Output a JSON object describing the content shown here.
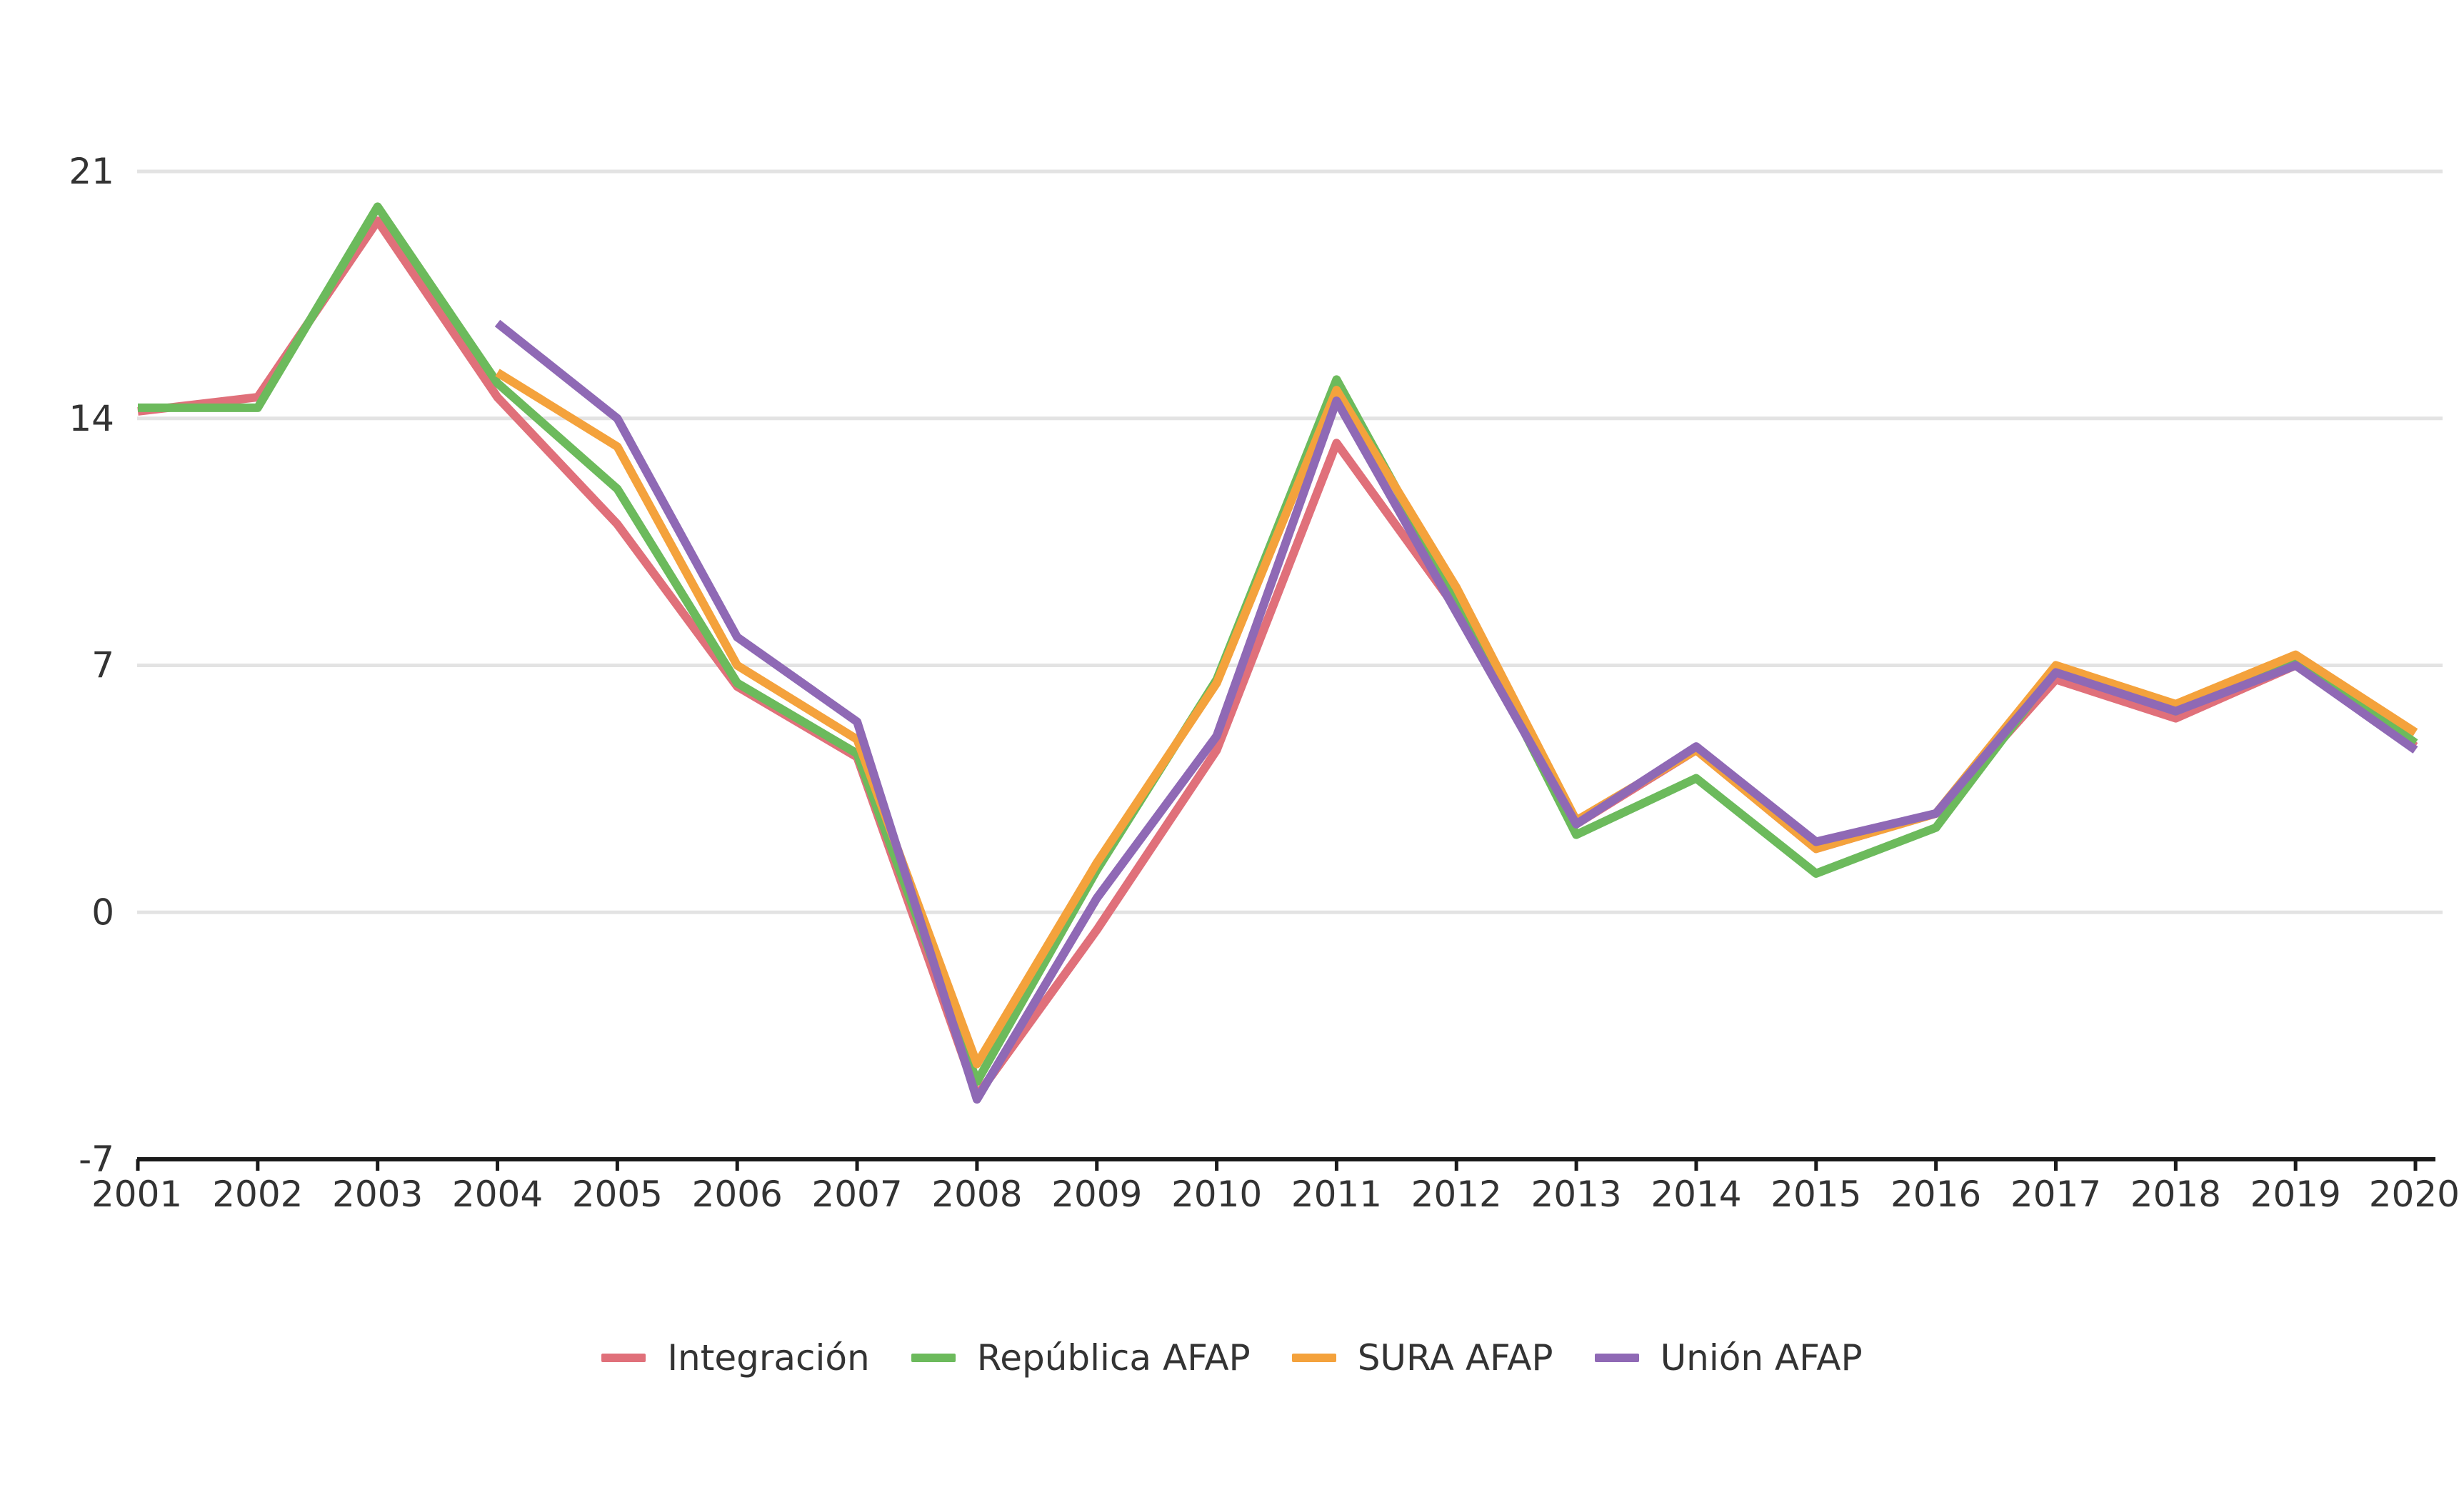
{
  "chart_data": {
    "type": "line",
    "title": "",
    "xlabel": "",
    "ylabel": "",
    "categories": [
      "2001",
      "2002",
      "2003",
      "2004",
      "2005",
      "2006",
      "2007",
      "2008",
      "2009",
      "2010",
      "2011",
      "2012",
      "2013",
      "2014",
      "2015",
      "2016",
      "2017",
      "2018",
      "2019",
      "2020"
    ],
    "ylim": [
      -7,
      21
    ],
    "yticks": [
      -7,
      0,
      7,
      14,
      21
    ],
    "grid": true,
    "legend_position": "bottom",
    "series": [
      {
        "name": "Integración",
        "color": "#e0707a",
        "values": [
          14.2,
          14.6,
          19.6,
          14.6,
          11.0,
          6.4,
          4.4,
          -5.2,
          -0.5,
          4.6,
          13.3,
          8.6,
          2.5,
          4.6,
          1.8,
          2.8,
          6.6,
          5.5,
          7.0,
          4.7
        ]
      },
      {
        "name": "República AFAP",
        "color": "#6cba5c",
        "values": [
          14.3,
          14.3,
          20.0,
          15.0,
          12.0,
          6.5,
          4.5,
          -4.8,
          1.2,
          6.6,
          15.1,
          8.9,
          2.2,
          3.8,
          1.1,
          2.4,
          6.9,
          5.7,
          7.2,
          4.8
        ]
      },
      {
        "name": "SURA AFAP",
        "color": "#f4a23c",
        "values": [
          null,
          null,
          null,
          15.3,
          13.2,
          7.0,
          4.9,
          -4.3,
          1.4,
          6.5,
          14.8,
          9.2,
          2.6,
          4.6,
          1.8,
          2.8,
          7.0,
          5.9,
          7.3,
          5.1
        ]
      },
      {
        "name": "Unión AFAP",
        "color": "#8f69b5",
        "values": [
          null,
          null,
          null,
          16.7,
          14.0,
          7.8,
          5.4,
          -5.3,
          0.4,
          5.0,
          14.5,
          8.5,
          2.5,
          4.7,
          2.0,
          2.8,
          6.8,
          5.7,
          7.0,
          4.6
        ]
      }
    ]
  }
}
